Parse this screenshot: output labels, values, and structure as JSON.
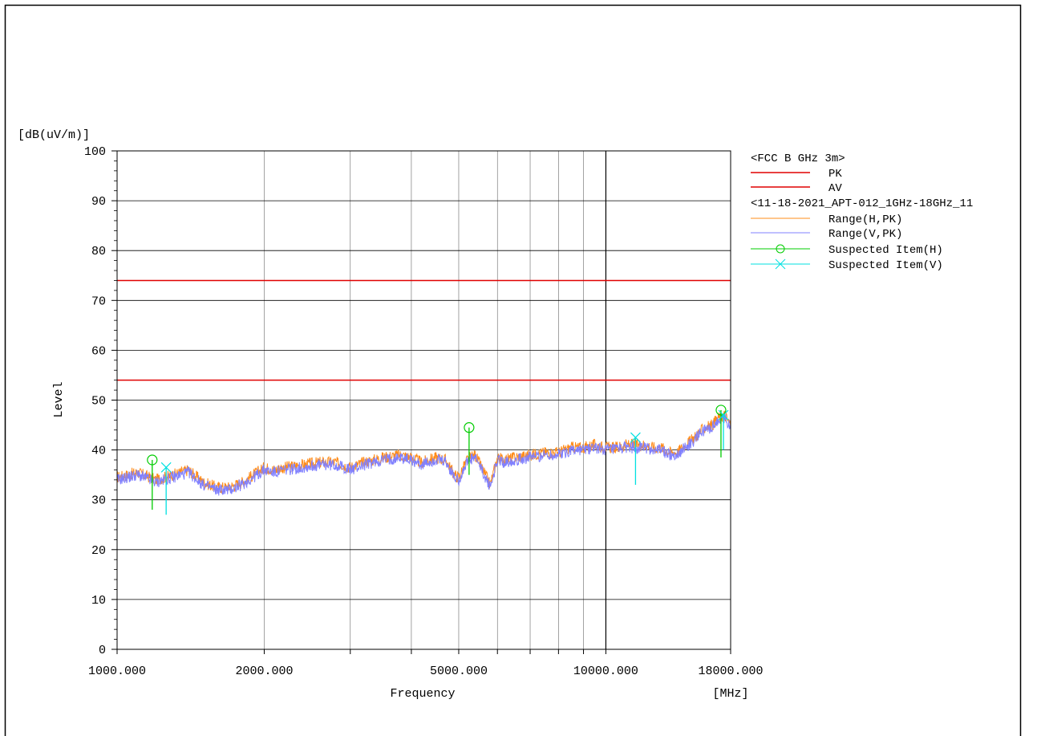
{
  "chart_data": {
    "type": "line",
    "y_unit": "[dB(uV/m)]",
    "ylabel": "Level",
    "xlabel": "Frequency",
    "x_unit": "[MHz]",
    "x_scale": "log",
    "xlim": [
      1000,
      18000
    ],
    "ylim": [
      0,
      100
    ],
    "y_ticks": [
      0,
      10,
      20,
      30,
      40,
      50,
      60,
      70,
      80,
      90,
      100
    ],
    "x_tick_labels": [
      {
        "value": 1000,
        "label": "1000.000"
      },
      {
        "value": 2000,
        "label": "2000.000"
      },
      {
        "value": 5000,
        "label": "5000.000"
      },
      {
        "value": 10000,
        "label": "10000.000"
      },
      {
        "value": 18000,
        "label": "18000.000"
      }
    ],
    "grid": true,
    "legend_position": "right",
    "legend_group1_title": "<FCC B GHz 3m>",
    "legend_group2_title": "<11-18-2021_APT-012_1GHz-18GHz_11",
    "limits": [
      {
        "name": "PK",
        "value": 74,
        "color": "#e00000"
      },
      {
        "name": "AV",
        "value": 54,
        "color": "#e00000"
      }
    ],
    "series": [
      {
        "name": "Range(H,PK)",
        "color": "#ff8c1a",
        "x": [
          1000,
          1100,
          1200,
          1300,
          1400,
          1500,
          1600,
          1700,
          1800,
          1900,
          2000,
          2100,
          2200,
          2400,
          2600,
          2800,
          3000,
          3200,
          3500,
          3800,
          4000,
          4200,
          4500,
          4700,
          4900,
          5000,
          5200,
          5400,
          5600,
          5800,
          6000,
          6200,
          6500,
          7000,
          7500,
          8000,
          8500,
          9000,
          9500,
          10000,
          10500,
          11000,
          11500,
          12000,
          12500,
          13000,
          13500,
          14000,
          14500,
          15000,
          15500,
          16000,
          16500,
          17000,
          17500,
          18000
        ],
        "values": [
          34.5,
          35.5,
          34,
          35,
          36,
          33.5,
          32.5,
          32.5,
          33.5,
          35,
          36.5,
          36,
          36.5,
          37,
          37.5,
          37.5,
          36.5,
          37.5,
          38.5,
          39,
          38.5,
          37.5,
          38.5,
          38,
          35,
          34.5,
          38,
          39,
          36,
          33,
          38.5,
          38,
          38.5,
          39,
          39.5,
          39.5,
          40.5,
          40.5,
          41,
          40.5,
          40.5,
          41,
          41,
          41,
          40.5,
          40.5,
          39.5,
          39.5,
          41,
          42,
          43.5,
          44.5,
          45,
          46.5,
          47,
          45
        ]
      },
      {
        "name": "Range(V,PK)",
        "color": "#8080ff",
        "x": [
          1000,
          1100,
          1200,
          1300,
          1400,
          1500,
          1600,
          1700,
          1800,
          1900,
          2000,
          2100,
          2200,
          2400,
          2600,
          2800,
          3000,
          3200,
          3500,
          3800,
          4000,
          4200,
          4500,
          4700,
          4900,
          5000,
          5200,
          5400,
          5600,
          5800,
          6000,
          6200,
          6500,
          7000,
          7500,
          8000,
          8500,
          9000,
          9500,
          10000,
          10500,
          11000,
          11500,
          12000,
          12500,
          13000,
          13500,
          14000,
          14500,
          15000,
          15500,
          16000,
          16500,
          17000,
          17500,
          18000
        ],
        "values": [
          34,
          35,
          33.5,
          34.5,
          35.5,
          33,
          32,
          32,
          33,
          34.5,
          36,
          35.5,
          36,
          36.5,
          37,
          37,
          36,
          37,
          38,
          38.5,
          38,
          37,
          38,
          37.5,
          34.5,
          34,
          37.5,
          38.5,
          35.5,
          32.5,
          38,
          37.5,
          38,
          38.5,
          39,
          39,
          40,
          40,
          40.5,
          40,
          40,
          40.5,
          40.5,
          40.5,
          40,
          40,
          39,
          39,
          40.5,
          41.5,
          43,
          44,
          44.5,
          46,
          46.5,
          44.5
        ]
      },
      {
        "name": "Suspected Item(H)",
        "color": "#00cc00",
        "marker": "circle",
        "x": [
          1180,
          5250,
          17200
        ],
        "values": [
          38.0,
          44.5,
          48.0
        ],
        "stem_bottom": [
          28.0,
          35.0,
          38.5
        ]
      },
      {
        "name": "Suspected Item(V)",
        "color": "#00e0e0",
        "marker": "x",
        "x": [
          1260,
          11500,
          17400
        ],
        "values": [
          36.5,
          42.5,
          47.0
        ],
        "stem_bottom": [
          27.0,
          33.0,
          40.0
        ]
      }
    ]
  }
}
